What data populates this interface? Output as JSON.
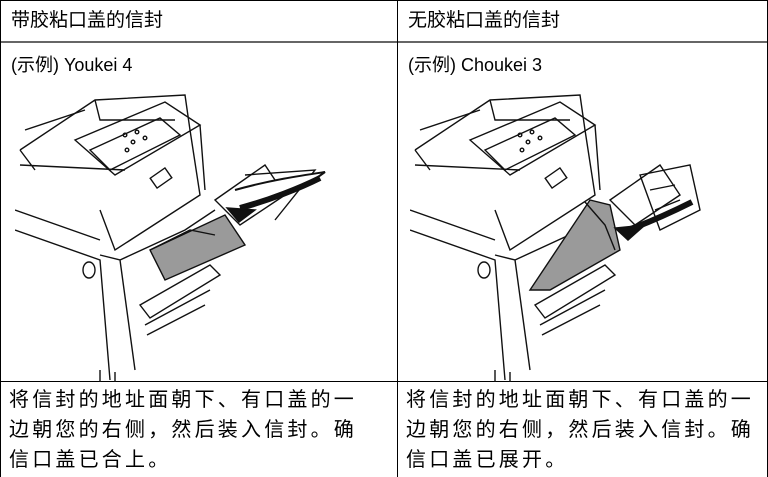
{
  "table": {
    "headers": [
      "带胶粘口盖的信封",
      "无胶粘口盖的信封"
    ],
    "examples": [
      "(示例) Youkei 4",
      "(示例) Choukei 3"
    ],
    "descriptions": [
      [
        "将信封的地址面朝下、有口盖的一",
        "边朝您的右侧，然后装入信封。确",
        "信口盖已合上。"
      ],
      [
        "将信封的地址面朝下、有口盖的一",
        "边朝您的右侧，然后装入信封。确",
        "信口盖已展开。"
      ]
    ]
  }
}
